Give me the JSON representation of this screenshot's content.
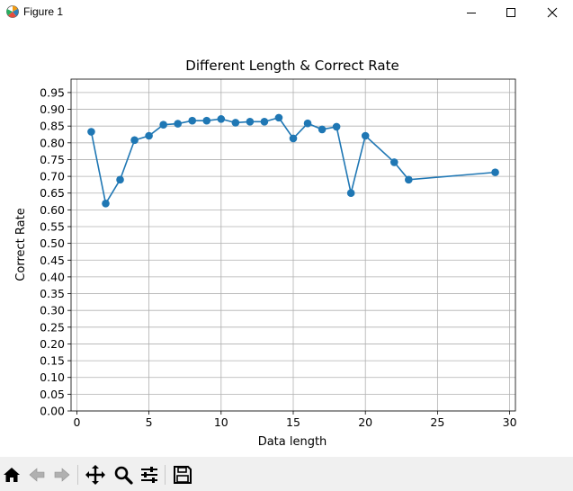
{
  "window": {
    "title": "Figure 1"
  },
  "toolbar": {
    "buttons": [
      {
        "name": "home-button",
        "icon": "home-icon"
      },
      {
        "name": "back-button",
        "icon": "arrow-left-icon"
      },
      {
        "name": "forward-button",
        "icon": "arrow-right-icon"
      },
      {
        "name": "pan-button",
        "icon": "move-icon"
      },
      {
        "name": "zoom-button",
        "icon": "magnifier-icon"
      },
      {
        "name": "configure-subplots-button",
        "icon": "sliders-icon"
      },
      {
        "name": "save-button",
        "icon": "floppy-disk-icon"
      }
    ]
  },
  "chart_data": {
    "type": "line",
    "title": "Different Length & Correct Rate",
    "xlabel": "Data length",
    "ylabel": "Correct Rate",
    "xlim": [
      -0.4,
      30.4
    ],
    "ylim": [
      0.0,
      0.99
    ],
    "xticks": [
      0,
      5,
      10,
      15,
      20,
      25,
      30
    ],
    "yticks": [
      0.0,
      0.05,
      0.1,
      0.15,
      0.2,
      0.25,
      0.3,
      0.35,
      0.4,
      0.45,
      0.5,
      0.55,
      0.6,
      0.65,
      0.7,
      0.75,
      0.8,
      0.85,
      0.9,
      0.95
    ],
    "ytick_labels": [
      "0.00",
      "0.05",
      "0.10",
      "0.15",
      "0.20",
      "0.25",
      "0.30",
      "0.35",
      "0.40",
      "0.45",
      "0.50",
      "0.55",
      "0.60",
      "0.65",
      "0.70",
      "0.75",
      "0.80",
      "0.85",
      "0.90",
      "0.95"
    ],
    "grid": true,
    "marker": "circle",
    "color": "#1f77b4",
    "x": [
      1,
      2,
      3,
      4,
      5,
      6,
      7,
      8,
      9,
      10,
      11,
      12,
      13,
      14,
      15,
      16,
      17,
      18,
      19,
      20,
      22,
      23,
      29
    ],
    "y": [
      0.833,
      0.619,
      0.69,
      0.808,
      0.821,
      0.854,
      0.857,
      0.866,
      0.866,
      0.871,
      0.86,
      0.863,
      0.863,
      0.875,
      0.813,
      0.858,
      0.84,
      0.848,
      0.65,
      0.821,
      0.742,
      0.69,
      0.712
    ]
  }
}
